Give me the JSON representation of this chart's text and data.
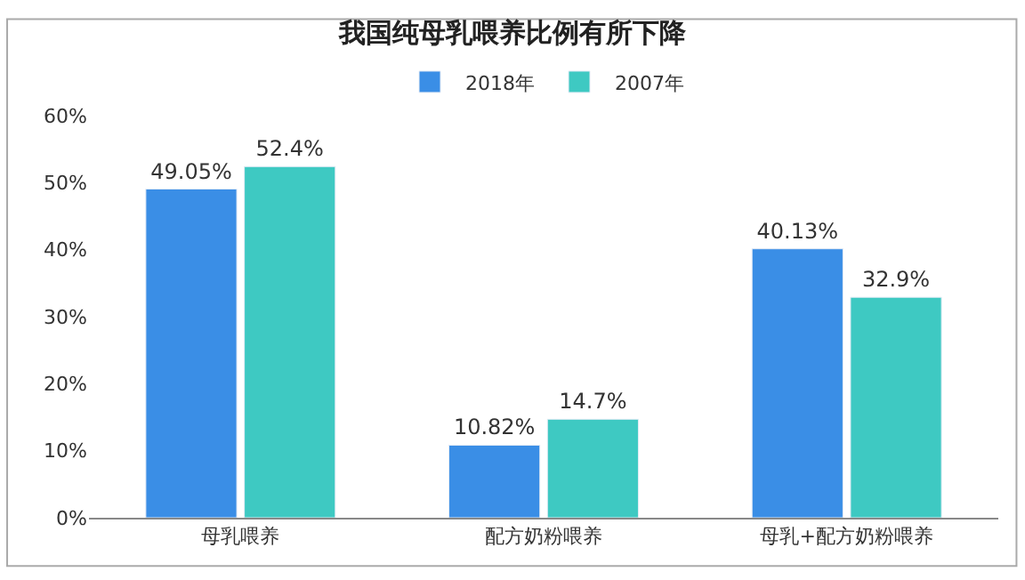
{
  "chart_data": {
    "type": "bar",
    "title": "我国纯母乳喂养比例有所下降",
    "categories": [
      "母乳喂养",
      "配方奶粉喂养",
      "母乳+配方奶粉喂养"
    ],
    "series": [
      {
        "name": "2018年",
        "color": "#3a8ee6",
        "values": [
          49.05,
          10.82,
          40.13
        ],
        "value_labels": [
          "49.05%",
          "10.82%",
          "40.13%"
        ]
      },
      {
        "name": "2007年",
        "color": "#3ec9c2",
        "values": [
          52.4,
          14.7,
          32.9
        ],
        "value_labels": [
          "52.4%",
          "14.7%",
          "32.9%"
        ]
      }
    ],
    "ylim": [
      0,
      60
    ],
    "yticks": [
      {
        "value": 0,
        "label": "0%"
      },
      {
        "value": 10,
        "label": "10%"
      },
      {
        "value": 20,
        "label": "20%"
      },
      {
        "value": 30,
        "label": "30%"
      },
      {
        "value": 40,
        "label": "40%"
      },
      {
        "value": 50,
        "label": "50%"
      },
      {
        "value": 60,
        "label": "60%"
      }
    ],
    "legend": "top"
  }
}
